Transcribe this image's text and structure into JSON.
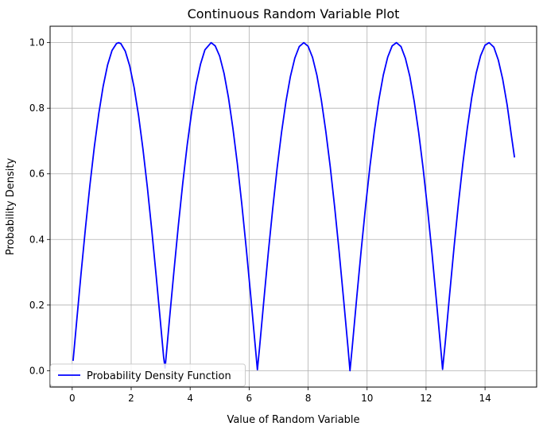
{
  "chart_data": {
    "type": "line",
    "title": "Continuous Random Variable Plot",
    "xlabel": "Value of Random Variable",
    "ylabel": "Probability Density",
    "xlim": [
      -0.75,
      15.75
    ],
    "ylim": [
      -0.05,
      1.05
    ],
    "xticks": [
      0,
      2,
      4,
      6,
      8,
      10,
      12,
      14
    ],
    "yticks": [
      0.0,
      0.2,
      0.4,
      0.6,
      0.8,
      1.0
    ],
    "xtick_labels": [
      "0",
      "2",
      "4",
      "6",
      "8",
      "10",
      "12",
      "14"
    ],
    "ytick_labels": [
      "0.0",
      "0.2",
      "0.4",
      "0.6",
      "0.8",
      "1.0"
    ],
    "grid": true,
    "legend_position": "lower-left",
    "series": [
      {
        "name": "Probability Density Function",
        "color": "#0000ff",
        "x": [
          0.03,
          0.15,
          0.3,
          0.45,
          0.6,
          0.75,
          0.9,
          1.05,
          1.2,
          1.35,
          1.5,
          1.571,
          1.65,
          1.8,
          1.95,
          2.1,
          2.25,
          2.4,
          2.55,
          2.7,
          2.85,
          3.0,
          3.1,
          3.15,
          3.3,
          3.45,
          3.6,
          3.75,
          3.9,
          4.05,
          4.2,
          4.35,
          4.5,
          4.712,
          4.85,
          5.0,
          5.15,
          5.3,
          5.45,
          5.6,
          5.75,
          5.9,
          6.05,
          6.2,
          6.28,
          6.35,
          6.5,
          6.65,
          6.8,
          6.95,
          7.1,
          7.25,
          7.4,
          7.55,
          7.7,
          7.854,
          8.0,
          8.15,
          8.3,
          8.45,
          8.6,
          8.75,
          8.9,
          9.05,
          9.2,
          9.35,
          9.42,
          9.5,
          9.65,
          9.8,
          9.95,
          10.1,
          10.25,
          10.4,
          10.55,
          10.7,
          10.85,
          10.996,
          11.15,
          11.3,
          11.45,
          11.6,
          11.75,
          11.9,
          12.05,
          12.2,
          12.35,
          12.5,
          12.56,
          12.65,
          12.8,
          12.95,
          13.1,
          13.25,
          13.4,
          13.55,
          13.7,
          13.85,
          14.0,
          14.137,
          14.3,
          14.45,
          14.6,
          14.75,
          14.9,
          15.0
        ],
        "y": [
          0.03,
          0.149,
          0.296,
          0.435,
          0.565,
          0.682,
          0.783,
          0.867,
          0.932,
          0.976,
          0.997,
          1.0,
          0.997,
          0.974,
          0.929,
          0.863,
          0.778,
          0.675,
          0.558,
          0.427,
          0.287,
          0.141,
          0.042,
          0.008,
          0.158,
          0.303,
          0.443,
          0.572,
          0.688,
          0.788,
          0.872,
          0.934,
          0.978,
          1.0,
          0.99,
          0.959,
          0.906,
          0.832,
          0.739,
          0.631,
          0.509,
          0.375,
          0.232,
          0.083,
          0.003,
          0.067,
          0.215,
          0.36,
          0.494,
          0.618,
          0.727,
          0.821,
          0.897,
          0.953,
          0.988,
          1.0,
          0.989,
          0.955,
          0.9,
          0.824,
          0.73,
          0.622,
          0.499,
          0.365,
          0.221,
          0.073,
          0.0,
          0.075,
          0.224,
          0.367,
          0.502,
          0.625,
          0.733,
          0.826,
          0.901,
          0.956,
          0.99,
          1.0,
          0.988,
          0.952,
          0.897,
          0.82,
          0.726,
          0.617,
          0.494,
          0.359,
          0.214,
          0.066,
          0.004,
          0.085,
          0.233,
          0.377,
          0.511,
          0.633,
          0.74,
          0.833,
          0.907,
          0.96,
          0.992,
          1.0,
          0.986,
          0.947,
          0.888,
          0.81,
          0.713,
          0.65
        ]
      }
    ]
  }
}
